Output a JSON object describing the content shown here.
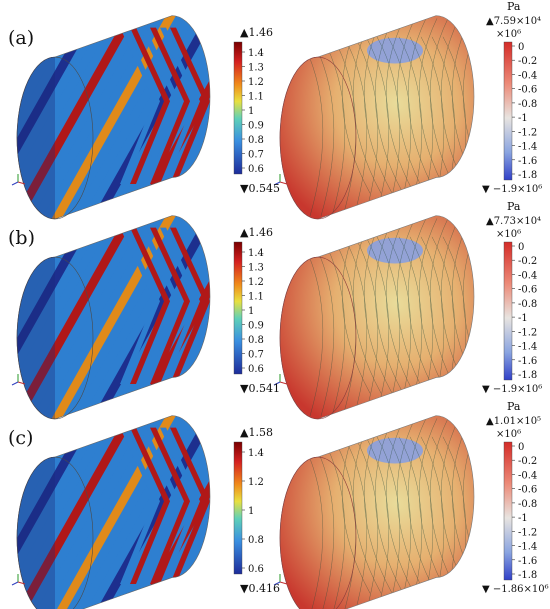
{
  "panels": [
    {
      "label": "(a)",
      "left_scale": {
        "max": "▲1.46",
        "min": "▼0.545",
        "ticks": [
          "1.4",
          "1.3",
          "1.2",
          "1.1",
          "1",
          "0.9",
          "0.8",
          "0.7",
          "0.6"
        ]
      },
      "right_scale": {
        "unit": "Pa",
        "max": "▲7.59×10⁴",
        "multiplier": "×10⁶",
        "min": "▼ −1.9×10⁶",
        "ticks": [
          "0",
          "-0.2",
          "-0.4",
          "-0.6",
          "-0.8",
          "-1",
          "-1.2",
          "-1.4",
          "-1.6",
          "-1.8"
        ]
      }
    },
    {
      "label": "(b)",
      "left_scale": {
        "max": "▲1.46",
        "min": "▼0.541",
        "ticks": [
          "1.4",
          "1.3",
          "1.2",
          "1.1",
          "1",
          "0.9",
          "0.8",
          "0.7",
          "0.6"
        ]
      },
      "right_scale": {
        "unit": "Pa",
        "max": "▲7.73×10⁴",
        "multiplier": "×10⁶",
        "min": "▼ −1.9×10⁶",
        "ticks": [
          "0",
          "-0.2",
          "-0.4",
          "-0.6",
          "-0.8",
          "-1",
          "-1.2",
          "-1.4",
          "-1.6",
          "-1.8"
        ]
      }
    },
    {
      "label": "(c)",
      "left_scale": {
        "max": "▲1.58",
        "min": "▼0.416",
        "ticks": [
          "1.4",
          "1.2",
          "1",
          "0.8",
          "0.6"
        ]
      },
      "right_scale": {
        "unit": "Pa",
        "max": "▲1.01×10⁵",
        "multiplier": "×10⁶",
        "min": "▼ −1.86×10⁶",
        "ticks": [
          "0",
          "-0.2",
          "-0.4",
          "-0.6",
          "-0.8",
          "-1",
          "-1.2",
          "-1.4",
          "-1.6",
          "-1.8"
        ]
      }
    }
  ],
  "colors": {
    "stripe_red": "#b01818",
    "stripe_orange": "#e08a1a",
    "stripe_blue": "#2e7fd0",
    "stripe_navy": "#1d2f8e",
    "stress_red": "#c8372e",
    "stress_yellow": "#e9d98f",
    "stress_blue": "#7f96d6"
  },
  "icons": [
    "axis-triad-icon"
  ]
}
